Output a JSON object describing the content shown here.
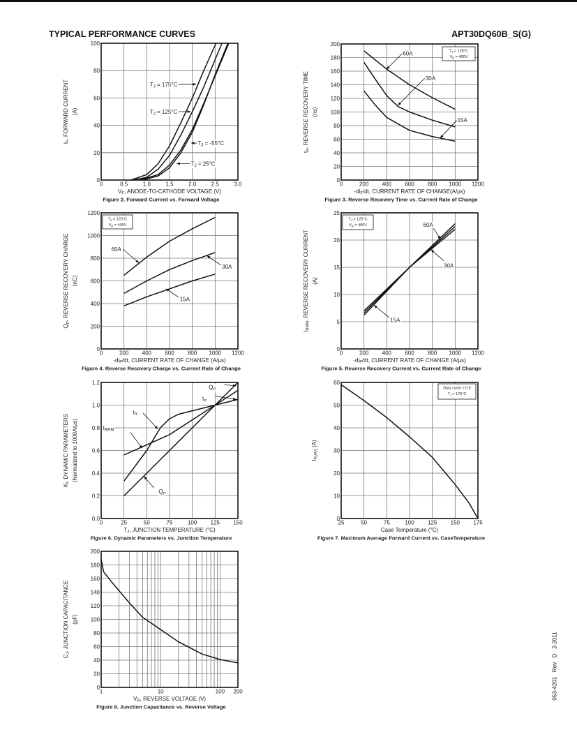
{
  "header": {
    "left": "TYPICAL PERFORMANCE CURVES",
    "right": "APT30DQ60B_S(G)"
  },
  "footer": "053-4201   Rev   D   2-2011",
  "chart_data": [
    {
      "type": "line",
      "caption": "Figure 2. Forward Current vs. Forward Voltage",
      "xlabel": [
        "V",
        [
          "F"
        ],
        ", ANODE-TO-CATHODE VOLTAGE (V)"
      ],
      "ylabel": [
        [
          "I",
          [
            "F"
          ],
          ", FORWARD CURRENT"
        ],
        [
          "(A)"
        ]
      ],
      "xlim": [
        0,
        3
      ],
      "ylim": [
        0,
        100
      ],
      "xscale": "linear",
      "grid": true,
      "xticks": [
        0,
        0.5,
        1,
        1.5,
        2,
        2.5,
        3
      ],
      "xticklabels": [
        "0",
        "0.5",
        "1.0",
        "1.5",
        "2.0",
        "2.5",
        "3.0"
      ],
      "yticks": [
        0,
        20,
        40,
        60,
        80,
        100
      ],
      "yticklabels": [
        "0",
        "20",
        "40",
        "60",
        "80",
        "100"
      ],
      "series": [
        {
          "name": "TJ = 175°C",
          "x": [
            0.65,
            1.0,
            1.25,
            1.5,
            1.75,
            2.0,
            2.25,
            2.52
          ],
          "y": [
            0,
            4,
            12,
            25,
            42,
            60,
            80,
            100
          ]
        },
        {
          "name": "TJ = 125°C",
          "x": [
            0.7,
            1.0,
            1.25,
            1.5,
            1.75,
            2.0,
            2.25,
            2.5,
            2.65
          ],
          "y": [
            0,
            2,
            8,
            18,
            33,
            50,
            68,
            88,
            100
          ]
        },
        {
          "name": "TJ = -55°C",
          "x": [
            0.9,
            1.25,
            1.5,
            1.75,
            2.0,
            2.25,
            2.5,
            2.78
          ],
          "y": [
            0,
            3,
            9,
            20,
            35,
            55,
            77,
            100
          ]
        },
        {
          "name": "TJ = 25°C",
          "x": [
            0.85,
            1.25,
            1.5,
            1.75,
            2.0,
            2.25,
            2.5,
            2.8
          ],
          "y": [
            0,
            4,
            11,
            22,
            37,
            56,
            76,
            100
          ]
        }
      ],
      "annotations": [
        [
          "T",
          [
            "J"
          ],
          " = 175°C"
        ],
        [
          "T",
          [
            "J"
          ],
          " = 125°C"
        ],
        [
          "T",
          [
            "J"
          ],
          " = -55°C"
        ],
        [
          "T",
          [
            "J"
          ],
          " = 25°C"
        ]
      ],
      "inset": null
    },
    {
      "type": "line",
      "caption": "Figure 3. Reverse Recovery Time vs. Current Rate of Change",
      "xlabel": [
        "-di",
        [
          "F"
        ],
        "/dt, CURRENT RATE OF CHANGE(A/µs)"
      ],
      "ylabel": [
        [
          "t",
          [
            "rr"
          ],
          ", REVERSE RECOVERY TIME"
        ],
        [
          "(ns)"
        ]
      ],
      "xlim": [
        0,
        1200
      ],
      "ylim": [
        0,
        200
      ],
      "xscale": "linear",
      "grid": true,
      "xticks": [
        0,
        200,
        400,
        600,
        800,
        1000,
        1200
      ],
      "xticklabels": [
        "0",
        "200",
        "400",
        "600",
        "800",
        "1000",
        "1200"
      ],
      "yticks": [
        0,
        20,
        40,
        60,
        80,
        100,
        120,
        140,
        160,
        180,
        200
      ],
      "yticklabels": [
        "0",
        "20",
        "40",
        "60",
        "80",
        "100",
        "120",
        "140",
        "160",
        "180",
        "200"
      ],
      "series": [
        {
          "name": "60A",
          "x": [
            200,
            400,
            600,
            800,
            1000
          ],
          "y": [
            190,
            163,
            140,
            121,
            104
          ]
        },
        {
          "name": "30A",
          "x": [
            200,
            300,
            400,
            500,
            600,
            800,
            1000
          ],
          "y": [
            173,
            148,
            124,
            108,
            100,
            88,
            78
          ]
        },
        {
          "name": "15A",
          "x": [
            200,
            300,
            400,
            600,
            800,
            1000
          ],
          "y": [
            131,
            110,
            92,
            73,
            64,
            57
          ]
        }
      ],
      "annotations": [
        [
          "60A"
        ],
        [
          "30A"
        ],
        [
          "15A"
        ]
      ],
      "inset": [
        [
          "T",
          [
            "J"
          ],
          " = 125°C"
        ],
        [
          "V",
          [
            "R"
          ],
          " = 400V"
        ]
      ]
    },
    {
      "type": "line",
      "caption": "Figure 4. Reverse Recovery Charge vs. Current Rate of Change",
      "xlabel": [
        "-di",
        [
          "F"
        ],
        "/dt, CURRENT RATE OF CHANGE (A/µs)"
      ],
      "ylabel": [
        [
          "Q",
          [
            "rr"
          ],
          ", REVERSE RECOVERY CHARGE"
        ],
        [
          "(nC)"
        ]
      ],
      "xlim": [
        0,
        1200
      ],
      "ylim": [
        0,
        1200
      ],
      "xscale": "linear",
      "grid": true,
      "xticks": [
        0,
        200,
        400,
        600,
        800,
        1000,
        1200
      ],
      "xticklabels": [
        "0",
        "200",
        "400",
        "600",
        "800",
        "1000",
        "1200"
      ],
      "yticks": [
        0,
        200,
        400,
        600,
        800,
        1000,
        1200
      ],
      "yticklabels": [
        "0",
        "200",
        "400",
        "600",
        "800",
        "1000",
        "1200"
      ],
      "series": [
        {
          "name": "60A",
          "x": [
            200,
            400,
            600,
            800,
            1000
          ],
          "y": [
            650,
            810,
            950,
            1060,
            1160
          ]
        },
        {
          "name": "30A",
          "x": [
            200,
            400,
            600,
            800,
            1000
          ],
          "y": [
            490,
            600,
            700,
            780,
            850
          ]
        },
        {
          "name": "15A",
          "x": [
            200,
            400,
            600,
            800,
            1000
          ],
          "y": [
            380,
            460,
            530,
            600,
            660
          ]
        }
      ],
      "annotations": [
        [
          "60A"
        ],
        [
          "30A"
        ],
        [
          "15A"
        ]
      ],
      "inset": [
        [
          "T",
          [
            "J"
          ],
          " = 125°C"
        ],
        [
          "V",
          [
            "R"
          ],
          " = 400V"
        ]
      ]
    },
    {
      "type": "line",
      "caption": "Figure 5. Reverse Recovery Current vs. Current Rate of Change",
      "xlabel": [
        "-di",
        [
          "F"
        ],
        "/dt, CURRENT RATE OF CHANGE (A/µs)"
      ],
      "ylabel": [
        [
          "I",
          [
            "RRM"
          ],
          ", REVERSE RECOVERY CURRENT"
        ],
        [
          "(A)"
        ]
      ],
      "xlim": [
        0,
        1200
      ],
      "ylim": [
        0,
        25
      ],
      "xscale": "linear",
      "grid": true,
      "xticks": [
        0,
        200,
        400,
        600,
        800,
        1000,
        1200
      ],
      "xticklabels": [
        "0",
        "200",
        "400",
        "600",
        "800",
        "1000",
        "1200"
      ],
      "yticks": [
        0,
        5,
        10,
        15,
        20,
        25
      ],
      "yticklabels": [
        "0",
        "5",
        "10",
        "15",
        "20",
        "25"
      ],
      "series": [
        {
          "name": "60A",
          "x": [
            200,
            600,
            1000
          ],
          "y": [
            6.2,
            15,
            23
          ]
        },
        {
          "name": "30A",
          "x": [
            200,
            600,
            1000
          ],
          "y": [
            6.6,
            15,
            22.5
          ]
        },
        {
          "name": "15A",
          "x": [
            200,
            600,
            1000
          ],
          "y": [
            7.0,
            15,
            22
          ]
        }
      ],
      "annotations": [
        [
          "60A"
        ],
        [
          "30A"
        ],
        [
          "15A"
        ]
      ],
      "inset": [
        [
          "T",
          [
            "J"
          ],
          " = 125°C"
        ],
        [
          "V",
          [
            "R"
          ],
          " = 400V"
        ]
      ]
    },
    {
      "type": "line",
      "caption": "Figure 6. Dynamic Parameters vs. Junction Temperature",
      "xlabel": [
        "T",
        [
          "J"
        ],
        ", JUNCTION TEMPERATURE (°C)"
      ],
      "ylabel": [
        [
          "K",
          [
            "f"
          ],
          ", DYNAMIC PARAMETERS"
        ],
        [
          "(Normalized to 1000A/µs)"
        ]
      ],
      "xlim": [
        0,
        150
      ],
      "ylim": [
        0,
        1.2
      ],
      "xscale": "linear",
      "grid": true,
      "xticks": [
        0,
        25,
        50,
        75,
        100,
        125,
        150
      ],
      "xticklabels": [
        "0",
        "25",
        "50",
        "75",
        "100",
        "125",
        "150"
      ],
      "yticks": [
        0,
        0.2,
        0.4,
        0.6,
        0.8,
        1.0,
        1.2
      ],
      "yticklabels": [
        "0.0",
        "0.2",
        "0.4",
        "0.6",
        "0.8",
        "1.0",
        "1.2"
      ],
      "series": [
        {
          "name": "Qrr",
          "x": [
            25,
            75,
            125,
            150
          ],
          "y": [
            0.2,
            0.6,
            1.0,
            1.2
          ]
        },
        {
          "name": "trr",
          "x": [
            25,
            50,
            65,
            75,
            85,
            125,
            150
          ],
          "y": [
            0.33,
            0.6,
            0.8,
            0.88,
            0.92,
            1.0,
            1.13
          ]
        },
        {
          "name": "IRRM",
          "x": [
            25,
            50,
            75,
            100,
            125,
            150
          ],
          "y": [
            0.56,
            0.65,
            0.74,
            0.87,
            1.0,
            1.05
          ]
        }
      ],
      "annotations": [
        [
          "Q",
          [
            "rr"
          ]
        ],
        [
          "t",
          [
            "rr"
          ]
        ],
        [
          "t",
          [
            "rr"
          ]
        ],
        [
          "I",
          [
            "RRM"
          ]
        ],
        [
          "Q",
          [
            "rr"
          ]
        ]
      ],
      "inset": null
    },
    {
      "type": "line",
      "caption": "Figure 7. Maximum Average Forward Current vs. CaseTemperature",
      "xlabel": [
        "Case Temperature (°C)"
      ],
      "ylabel": [
        [
          "I",
          [
            "F(AV)"
          ],
          " (A)"
        ]
      ],
      "xlim": [
        25,
        175
      ],
      "ylim": [
        0,
        60
      ],
      "xscale": "linear",
      "grid": true,
      "xticks": [
        25,
        50,
        75,
        100,
        125,
        150,
        175
      ],
      "xticklabels": [
        "25",
        "50",
        "75",
        "100",
        "125",
        "150",
        "175"
      ],
      "yticks": [
        0,
        10,
        20,
        30,
        40,
        50,
        60
      ],
      "yticklabels": [
        "0",
        "10",
        "20",
        "30",
        "40",
        "50",
        "60"
      ],
      "series": [
        {
          "x": [
            25,
            50,
            75,
            100,
            125,
            150,
            165,
            175
          ],
          "y": [
            59,
            52,
            44.5,
            36,
            27,
            15,
            7,
            0
          ]
        }
      ],
      "annotations": [],
      "inset": [
        [
          "Duty cycle = 0.5"
        ],
        [
          "T",
          [
            "J"
          ],
          " = 175°C"
        ]
      ]
    },
    {
      "type": "line",
      "caption": "Figure 8.  Junction Capacitance vs. Reverse Voltage",
      "xlabel": [
        "V",
        [
          "R"
        ],
        ", REVERSE VOLTAGE (V)"
      ],
      "ylabel": [
        [
          "C",
          [
            "J"
          ],
          ", JUNCTION CAPACITANCE"
        ],
        [
          "(pF)"
        ]
      ],
      "xlim": [
        1,
        200
      ],
      "ylim": [
        0,
        200
      ],
      "xscale": "log",
      "grid": true,
      "xticks": [
        1,
        10,
        100,
        200
      ],
      "xticklabels": [
        "1",
        "10",
        "100",
        "200"
      ],
      "yticks": [
        0,
        20,
        40,
        60,
        80,
        100,
        120,
        140,
        160,
        180,
        200
      ],
      "yticklabels": [
        "0",
        "20",
        "40",
        "60",
        "80",
        "100",
        "120",
        "140",
        "160",
        "180",
        "200"
      ],
      "series": [
        {
          "x": [
            1,
            1.1,
            1.5,
            2,
            3,
            5,
            10,
            20,
            50,
            100,
            200
          ],
          "y": [
            188,
            170,
            155,
            142,
            124,
            103,
            85,
            67,
            49,
            41,
            36
          ]
        }
      ],
      "annotations": [],
      "inset": null
    }
  ]
}
